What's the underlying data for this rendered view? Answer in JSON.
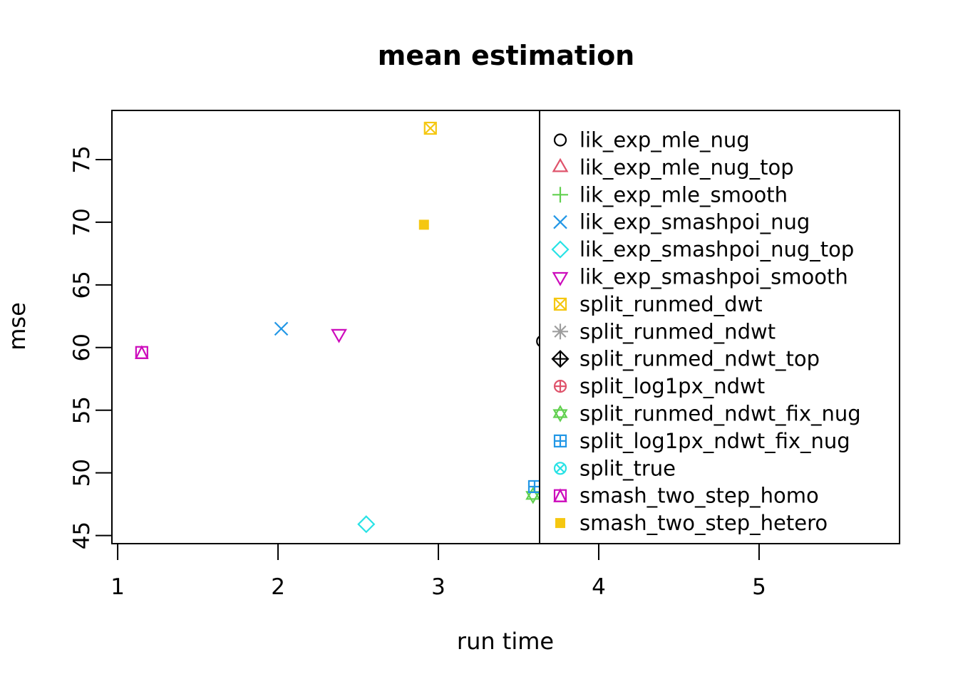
{
  "figure": {
    "title": "mean estimation",
    "xlabel": "run time",
    "ylabel": "mse"
  },
  "chart_data": {
    "type": "scatter",
    "title": "mean estimation",
    "xlabel": "run time",
    "ylabel": "mse",
    "x_ticks": [
      "1",
      "2",
      "3",
      "4",
      "5"
    ],
    "y_ticks": [
      "45",
      "50",
      "55",
      "60",
      "65",
      "70",
      "75"
    ],
    "xlim": [
      0.964,
      5.876
    ],
    "ylim": [
      44.35,
      78.92
    ],
    "grid": false,
    "legend_position": "right-overlay",
    "series": [
      {
        "name": "lik_exp_mle_nug",
        "pch": 1,
        "color": "#000000",
        "point": [
          3.65,
          60.5
        ]
      },
      {
        "name": "lik_exp_mle_nug_top",
        "pch": 2,
        "color": "#DF536B",
        "point": null
      },
      {
        "name": "lik_exp_mle_smooth",
        "pch": 3,
        "color": "#61D04F",
        "point": null
      },
      {
        "name": "lik_exp_smashpoi_nug",
        "pch": 4,
        "color": "#2297E6",
        "point": [
          2.02,
          61.5
        ]
      },
      {
        "name": "lik_exp_smashpoi_nug_top",
        "pch": 5,
        "color": "#28E2E5",
        "point": [
          2.55,
          45.9
        ]
      },
      {
        "name": "lik_exp_smashpoi_smooth",
        "pch": 6,
        "color": "#CD0BBC",
        "point": [
          2.38,
          61.1
        ]
      },
      {
        "name": "split_runmed_dwt",
        "pch": 7,
        "color": "#F5C710",
        "point": [
          2.95,
          77.5
        ]
      },
      {
        "name": "split_runmed_ndwt",
        "pch": 8,
        "color": "#9E9E9E",
        "point": null
      },
      {
        "name": "split_runmed_ndwt_top",
        "pch": 9,
        "color": "#000000",
        "point": null
      },
      {
        "name": "split_log1px_ndwt",
        "pch": 10,
        "color": "#DF536B",
        "point": null
      },
      {
        "name": "split_runmed_ndwt_fix_nug",
        "pch": 11,
        "color": "#61D04F",
        "point": [
          3.59,
          48.2
        ]
      },
      {
        "name": "split_log1px_ndwt_fix_nug",
        "pch": 12,
        "color": "#2297E6",
        "point": [
          3.6,
          48.9
        ]
      },
      {
        "name": "split_true",
        "pch": 13,
        "color": "#28E2E5",
        "point": null
      },
      {
        "name": "smash_two_step_homo",
        "pch": 14,
        "color": "#CD0BBC",
        "point": [
          1.15,
          59.6
        ]
      },
      {
        "name": "smash_two_step_hetero",
        "pch": 15,
        "color": "#F5C710",
        "point": [
          2.91,
          69.8
        ]
      }
    ],
    "axis_color": "#000000",
    "background_color": "#ffffff"
  }
}
